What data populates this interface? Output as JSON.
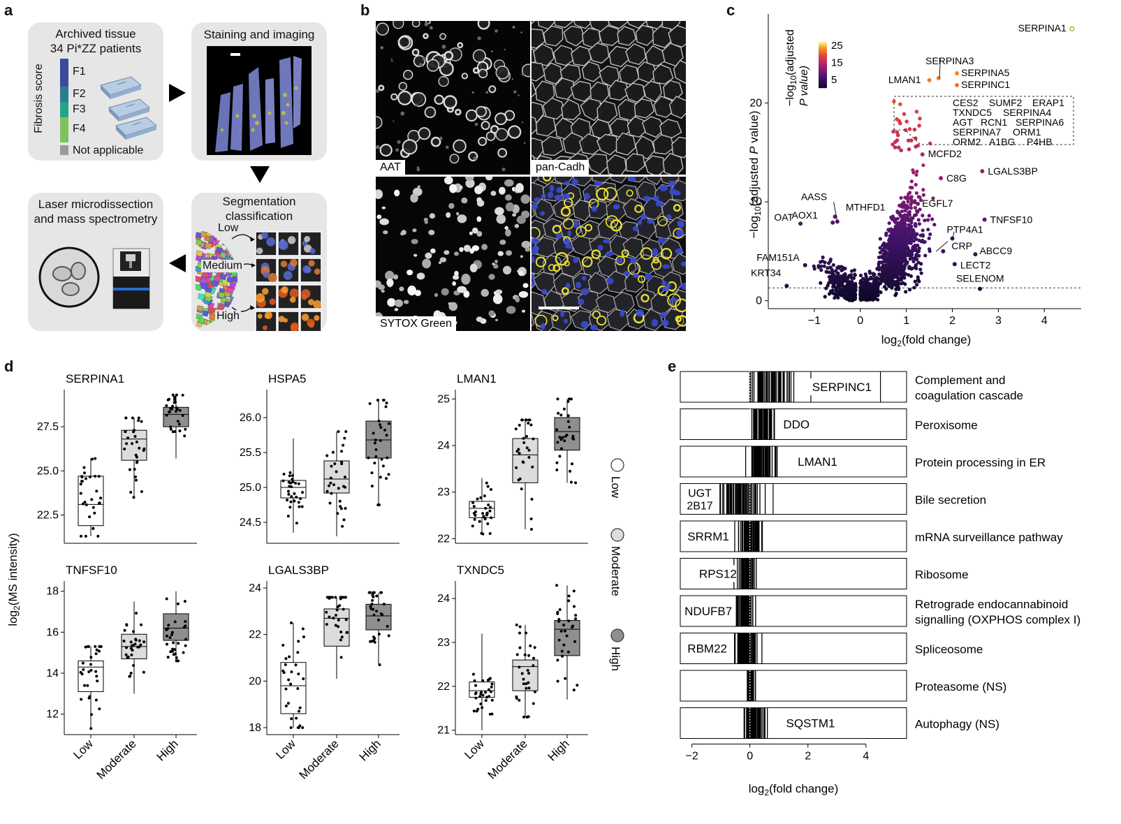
{
  "panel_labels": {
    "a": "a",
    "b": "b",
    "c": "c",
    "d": "d",
    "e": "e"
  },
  "panel_a": {
    "archived_title_1": "Archived tissue",
    "archived_title_2": "34 Pi*ZZ patients",
    "fibrosis_axis": "Fibrosis score",
    "fibrosis_levels": [
      {
        "label": "F1",
        "color": "#3b4a9c"
      },
      {
        "label": "F2",
        "color": "#2a7d8f"
      },
      {
        "label": "F3",
        "color": "#24a38a"
      },
      {
        "label": "F4",
        "color": "#7cc35a"
      }
    ],
    "not_applicable": "Not applicable",
    "not_applicable_color": "#9a9a9a",
    "staining_title": "Staining and imaging",
    "segmentation_title_1": "Segmentation",
    "segmentation_title_2": "classification",
    "seg_low": "Low",
    "seg_medium": "Medium",
    "seg_high": "High",
    "laser_title_1": "Laser microdissection",
    "laser_title_2": "and mass spectrometry"
  },
  "panel_b": {
    "labels": [
      "AAT",
      "pan-Cadh",
      "SYTOX Green"
    ]
  },
  "chart_c": {
    "type": "scatter",
    "xlabel_main": "log",
    "xlabel_sub": "2",
    "xlabel_rest": "(fold change)",
    "ylabel_pre": "−log",
    "ylabel_sub": "10",
    "ylabel_mid": "(adjusted ",
    "ylabel_p": "P",
    "ylabel_post": " value)",
    "xticks": [
      -1,
      0,
      1,
      2,
      3,
      4
    ],
    "yticks": [
      0,
      10,
      20
    ],
    "xlim": [
      -2.0,
      4.8
    ],
    "ylim": [
      -0.8,
      29
    ],
    "threshold_y": 1.3,
    "colorbar_title_1": "−log",
    "colorbar_title_sub": "10",
    "colorbar_title_2": "(adjusted",
    "colorbar_title_3": "P value)",
    "colorbar_ticks": [
      25,
      15,
      5
    ],
    "labeled_points": [
      {
        "name": "SERPINA1",
        "x": 4.6,
        "y": 27.5
      },
      {
        "name": "SERPINA3",
        "x": 1.7,
        "y": 22.5
      },
      {
        "name": "LMAN1",
        "x": 1.5,
        "y": 22.3
      },
      {
        "name": "SERPINA5",
        "x": 2.1,
        "y": 23.0
      },
      {
        "name": "SERPINC1",
        "x": 2.1,
        "y": 21.8
      },
      {
        "name": "MCFD2",
        "x": 1.35,
        "y": 14.8
      },
      {
        "name": "C8G",
        "x": 1.75,
        "y": 12.4
      },
      {
        "name": "LGALS3BP",
        "x": 2.65,
        "y": 13.1
      },
      {
        "name": "EGFL7",
        "x": 1.25,
        "y": 9.8
      },
      {
        "name": "TNFSF10",
        "x": 2.7,
        "y": 8.2
      },
      {
        "name": "PTP4A1",
        "x": 2.0,
        "y": 6.3
      },
      {
        "name": "CRP",
        "x": 1.8,
        "y": 5.0
      },
      {
        "name": "ABCC9",
        "x": 2.5,
        "y": 4.7
      },
      {
        "name": "LECT2",
        "x": 2.05,
        "y": 3.7
      },
      {
        "name": "SELENOM",
        "x": 2.6,
        "y": 1.2
      },
      {
        "name": "AASS",
        "x": -0.55,
        "y": 8.5
      },
      {
        "name": "AOX1",
        "x": -0.6,
        "y": 7.9
      },
      {
        "name": "MTHFD1",
        "x": -0.5,
        "y": 8.0
      },
      {
        "name": "OAT",
        "x": -1.3,
        "y": 7.8
      },
      {
        "name": "FAM151A",
        "x": -1.2,
        "y": 3.6
      },
      {
        "name": "KRT34",
        "x": -1.6,
        "y": 1.5
      }
    ],
    "cluster_labels": [
      [
        "CES2",
        "SUMF2",
        "ERAP1"
      ],
      [
        "TXNDC5",
        "SERPINA4"
      ],
      [
        "AGT",
        "RCN1",
        "SERPINA6"
      ],
      [
        "SERPINA7",
        "ORM1"
      ],
      [
        "ORM2",
        "A1BG",
        "P4HB"
      ]
    ]
  },
  "panel_d": {
    "ylabel_pre": "log",
    "ylabel_sub": "2",
    "ylabel_post": "(MS intensity)",
    "groups": [
      "Low",
      "Moderate",
      "High"
    ],
    "group_colors": [
      "#ffffff",
      "#dcdcdc",
      "#8f8f8f"
    ],
    "legend": [
      "Low",
      "Moderate",
      "High"
    ],
    "charts": [
      {
        "title": "SERPINA1",
        "ylim": [
          20.9,
          29.6
        ],
        "yticks": [
          22.5,
          25.0,
          27.5
        ],
        "ytick_labels": [
          "22.5",
          "25.0",
          "27.5"
        ],
        "boxes": [
          {
            "q1": 21.9,
            "med": 23.1,
            "q3": 24.7,
            "lo": 21.3,
            "hi": 25.7
          },
          {
            "q1": 25.6,
            "med": 26.8,
            "q3": 27.3,
            "lo": 23.5,
            "hi": 28.0
          },
          {
            "q1": 27.5,
            "med": 28.2,
            "q3": 28.6,
            "lo": 25.7,
            "hi": 29.3
          }
        ]
      },
      {
        "title": "HSPA5",
        "ylim": [
          24.2,
          26.4
        ],
        "yticks": [
          24.5,
          25.0,
          25.5,
          26.0
        ],
        "ytick_labels": [
          "24.5",
          "25.0",
          "25.5",
          "26.0"
        ],
        "boxes": [
          {
            "q1": 24.85,
            "med": 25.0,
            "q3": 25.1,
            "lo": 24.35,
            "hi": 25.7
          },
          {
            "q1": 24.92,
            "med": 25.12,
            "q3": 25.38,
            "lo": 24.3,
            "hi": 25.8
          },
          {
            "q1": 25.42,
            "med": 25.68,
            "q3": 25.95,
            "lo": 24.75,
            "hi": 26.25
          }
        ]
      },
      {
        "title": "LMAN1",
        "ylim": [
          21.9,
          25.2
        ],
        "yticks": [
          22,
          23,
          24,
          25
        ],
        "ytick_labels": [
          "22",
          "23",
          "24",
          "25"
        ],
        "boxes": [
          {
            "q1": 22.45,
            "med": 22.65,
            "q3": 22.8,
            "lo": 22.1,
            "hi": 23.3
          },
          {
            "q1": 23.2,
            "med": 23.8,
            "q3": 24.15,
            "lo": 22.2,
            "hi": 24.55
          },
          {
            "q1": 23.9,
            "med": 24.3,
            "q3": 24.6,
            "lo": 23.2,
            "hi": 25.0
          }
        ]
      },
      {
        "title": "TNFSF10",
        "ylim": [
          11.0,
          18.5
        ],
        "yticks": [
          12,
          14,
          16,
          18
        ],
        "ytick_labels": [
          "12",
          "14",
          "16",
          "18"
        ],
        "boxes": [
          {
            "q1": 13.1,
            "med": 14.3,
            "q3": 14.6,
            "lo": 11.3,
            "hi": 15.3
          },
          {
            "q1": 14.7,
            "med": 15.3,
            "q3": 15.9,
            "lo": 13.0,
            "hi": 17.5
          },
          {
            "q1": 15.6,
            "med": 16.2,
            "q3": 16.9,
            "lo": 14.6,
            "hi": 18.0
          }
        ]
      },
      {
        "title": "LGALS3BP",
        "ylim": [
          17.7,
          24.3
        ],
        "yticks": [
          18,
          20,
          22,
          24
        ],
        "ytick_labels": [
          "18",
          "20",
          "22",
          "24"
        ],
        "boxes": [
          {
            "q1": 18.6,
            "med": 19.8,
            "q3": 20.8,
            "lo": 18.0,
            "hi": 22.5
          },
          {
            "q1": 21.5,
            "med": 22.7,
            "q3": 23.1,
            "lo": 20.1,
            "hi": 23.6
          },
          {
            "q1": 22.2,
            "med": 22.8,
            "q3": 23.3,
            "lo": 20.7,
            "hi": 23.8
          }
        ]
      },
      {
        "title": "TXNDC5",
        "ylim": [
          20.9,
          24.4
        ],
        "yticks": [
          21,
          22,
          23,
          24
        ],
        "ytick_labels": [
          "21",
          "22",
          "23",
          "24"
        ],
        "boxes": [
          {
            "q1": 21.75,
            "med": 21.9,
            "q3": 22.1,
            "lo": 21.0,
            "hi": 23.2
          },
          {
            "q1": 21.9,
            "med": 22.45,
            "q3": 22.6,
            "lo": 21.3,
            "hi": 23.4
          },
          {
            "q1": 22.7,
            "med": 23.3,
            "q3": 23.5,
            "lo": 21.7,
            "hi": 24.3
          }
        ]
      }
    ]
  },
  "panel_e": {
    "xlabel_pre": "log",
    "xlabel_sub": "2",
    "xlabel_post": "(fold change)",
    "xticks": [
      -2,
      0,
      2,
      4
    ],
    "xtick_labels": [
      "−2",
      "0",
      "2",
      "4"
    ],
    "xlim": [
      -2.4,
      5.4
    ],
    "rows": [
      {
        "label1": "Complement and",
        "label2": "coagulation cascade",
        "gene": "SERPINC1",
        "gene2": "",
        "gene_x": 2.1,
        "center": 0.7,
        "spread": 0.55,
        "extra": [
          2.1,
          4.5
        ]
      },
      {
        "label1": "Peroxisome",
        "label2": "",
        "gene": "DDO",
        "gene2": "",
        "gene_x": 1.1,
        "center": 0.45,
        "spread": 0.3,
        "extra": []
      },
      {
        "label1": "Protein processing in ER",
        "label2": "",
        "gene": "LMAN1",
        "gene2": "",
        "gene_x": 1.6,
        "center": 0.45,
        "spread": 0.4,
        "extra": []
      },
      {
        "label1": "Bile secretion",
        "label2": "",
        "gene": "UGT",
        "gene2": "2B17",
        "gene_x": -2.2,
        "center": -0.3,
        "spread": 0.6,
        "extra": [
          0.8
        ]
      },
      {
        "label1": "mRNA surveillance pathway",
        "label2": "",
        "gene": "SRRM1",
        "gene2": "",
        "gene_x": -2.2,
        "center": -0.1,
        "spread": 0.35,
        "extra": []
      },
      {
        "label1": "Ribosome",
        "label2": "",
        "gene": "RPS12",
        "gene2": "",
        "gene_x": -1.8,
        "center": -0.1,
        "spread": 0.25,
        "extra": []
      },
      {
        "label1": "Retrograde endocannabinoid",
        "label2": "signalling (OXPHOS complex I)",
        "gene": "NDUFB7",
        "gene2": "",
        "gene_x": -2.3,
        "center": -0.15,
        "spread": 0.25,
        "extra": []
      },
      {
        "label1": "Spliceosome",
        "label2": "",
        "gene": "RBM22",
        "gene2": "",
        "gene_x": -2.2,
        "center": -0.15,
        "spread": 0.3,
        "extra": []
      },
      {
        "label1": "Proteasome (NS)",
        "label2": "",
        "gene": "",
        "gene2": "",
        "gene_x": 0,
        "center": 0.05,
        "spread": 0.12,
        "extra": []
      },
      {
        "label1": "Autophagy (NS)",
        "label2": "",
        "gene": "SQSTM1",
        "gene2": "",
        "gene_x": 1.2,
        "center": 0.15,
        "spread": 0.3,
        "extra": []
      }
    ]
  }
}
